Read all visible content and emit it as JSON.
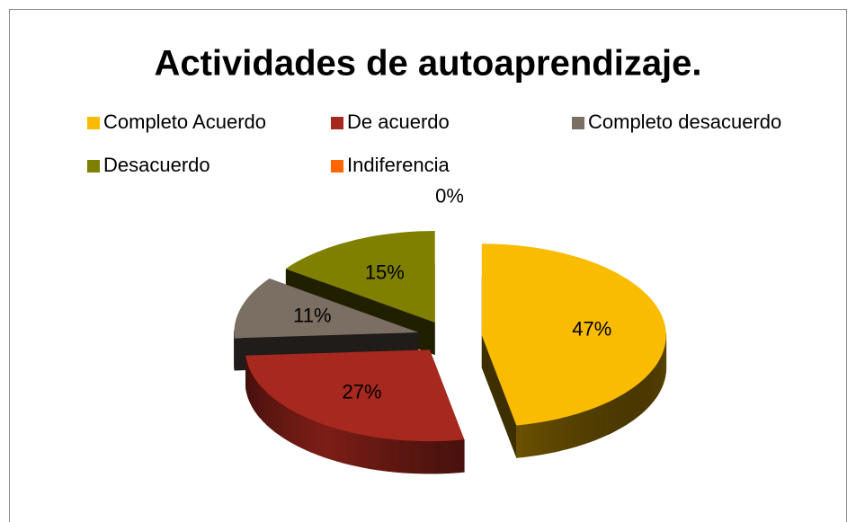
{
  "chart_data": {
    "type": "pie",
    "title": "Actividades de autoaprendizaje.",
    "categories": [
      "Completo Acuerdo",
      "De acuerdo",
      "Completo desacuerdo",
      "Desacuerdo",
      "Indiferencia"
    ],
    "values": [
      47,
      27,
      11,
      15,
      0
    ],
    "value_labels": [
      "47%",
      "27%",
      "11%",
      "15%",
      "0%"
    ],
    "colors": [
      "#f9bc00",
      "#a6281e",
      "#7b6e62",
      "#7f7f00",
      "#ff6600"
    ],
    "legend": "top",
    "three_d": true,
    "exploded": true
  }
}
